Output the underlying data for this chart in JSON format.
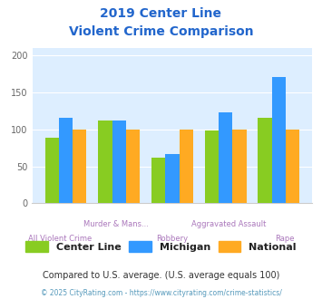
{
  "title_line1": "2019 Center Line",
  "title_line2": "Violent Crime Comparison",
  "title_color": "#2266cc",
  "categories": [
    "All Violent Crime",
    "Murder & Mans...",
    "Robbery",
    "Aggravated Assault",
    "Rape"
  ],
  "center_line": [
    88,
    112,
    62,
    98,
    115
  ],
  "michigan": [
    116,
    112,
    66,
    123,
    170
  ],
  "national": [
    100,
    100,
    100,
    100,
    100
  ],
  "color_center": "#88cc22",
  "color_michigan": "#3399ff",
  "color_national": "#ffaa22",
  "ylim": [
    0,
    210
  ],
  "yticks": [
    0,
    50,
    100,
    150,
    200
  ],
  "bg_color": "#ddeeff",
  "legend_labels": [
    "Center Line",
    "Michigan",
    "National"
  ],
  "footnote1": "Compared to U.S. average. (U.S. average equals 100)",
  "footnote2": "© 2025 CityRating.com - https://www.cityrating.com/crime-statistics/",
  "footnote1_color": "#333333",
  "footnote2_color": "#5599bb",
  "xlabel_color": "#aa77bb",
  "xlabel_color2": "#aa77bb"
}
